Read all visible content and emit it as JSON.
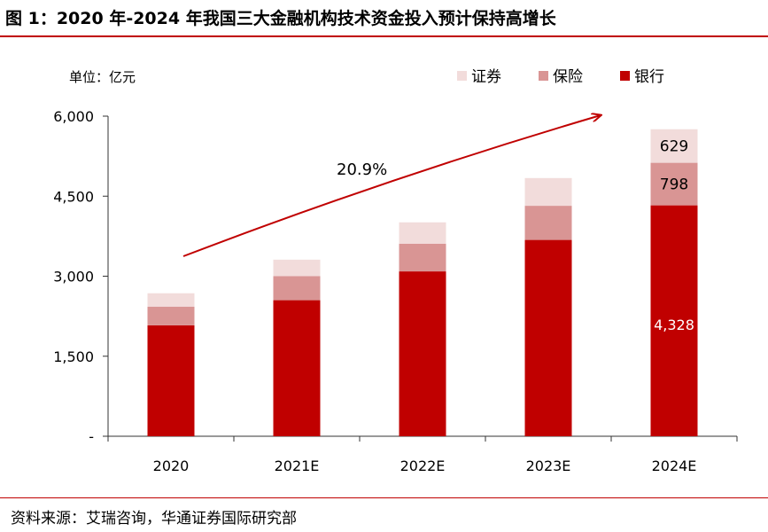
{
  "title": "图 1：2020 年-2024 年我国三大金融机构技术资金投入预计保持高增长",
  "source": "资料来源：艾瑞咨询，华通证券国际研究部",
  "chart_data": {
    "type": "bar",
    "stacked": true,
    "unit_label": "单位：亿元",
    "categories": [
      "2020",
      "2021E",
      "2022E",
      "2023E",
      "2024E"
    ],
    "series": [
      {
        "name": "银行",
        "color": "#c00000",
        "values": [
          2080,
          2550,
          3090,
          3680,
          4328
        ]
      },
      {
        "name": "保险",
        "color": "#d99594",
        "values": [
          350,
          450,
          520,
          640,
          798
        ]
      },
      {
        "name": "证券",
        "color": "#f2dcdb",
        "values": [
          250,
          310,
          400,
          520,
          629
        ]
      }
    ],
    "legend_order": [
      "证券",
      "保险",
      "银行"
    ],
    "legend_position": "top-right",
    "yticks": [
      0,
      1500,
      3000,
      4500,
      6000
    ],
    "ytick_labels": [
      "-",
      "1,500",
      "3,000",
      "4,500",
      "6,000"
    ],
    "ylim": [
      0,
      6000
    ],
    "grid": false,
    "data_labels": [
      {
        "category": "2024E",
        "series": "银行",
        "text": "4,328"
      },
      {
        "category": "2024E",
        "series": "保险",
        "text": "798"
      },
      {
        "category": "2024E",
        "series": "证券",
        "text": "629"
      }
    ],
    "annotation": {
      "text": "20.9%",
      "arrow": true,
      "color": "#c00000"
    }
  }
}
